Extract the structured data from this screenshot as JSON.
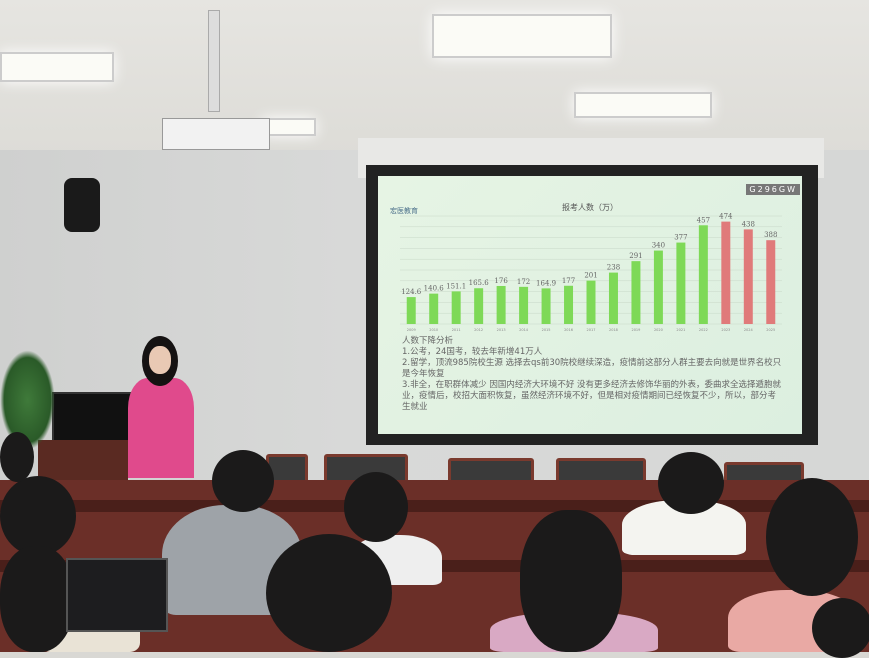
{
  "slide": {
    "logo_text": "宏医教育",
    "watermark_code": "G296GW",
    "notes_heading": "人数下降分析",
    "notes": [
      "1.公考，24国考，较去年新增41万人",
      "2.留学，顶流985院校生源 选择去qs前30院校继续深造，疫情前这部分人群主要去向就是世界名校只是今年恢复",
      "3.非全，在职群体减少 因国内经济大环境不好 没有更多经济去修饰华丽的外表，委曲求全选择遁胞就业，疫情后，校招大面积恢复，虽然经济环境不好，但是相对疫情期间已经恢复不少，所以，部分考生就业"
    ]
  },
  "chart_data": {
    "type": "bar",
    "title": "报考人数（万）",
    "categories": [
      "2009",
      "2010",
      "2011",
      "2012",
      "2013",
      "2014",
      "2015",
      "2016",
      "2017",
      "2018",
      "2019",
      "2020",
      "2021",
      "2022",
      "2023",
      "2024",
      "2025"
    ],
    "values": [
      124.6,
      140.6,
      151.1,
      165.6,
      176,
      172,
      164.9,
      177,
      201,
      238,
      291,
      340,
      377,
      457,
      474,
      438,
      388
    ],
    "ylim": [
      0,
      500
    ],
    "grid": true,
    "colors": {
      "normal": "#7ed957",
      "highlight": "#e07a7a"
    },
    "highlighted_categories": [
      "2023",
      "2024",
      "2025"
    ]
  }
}
